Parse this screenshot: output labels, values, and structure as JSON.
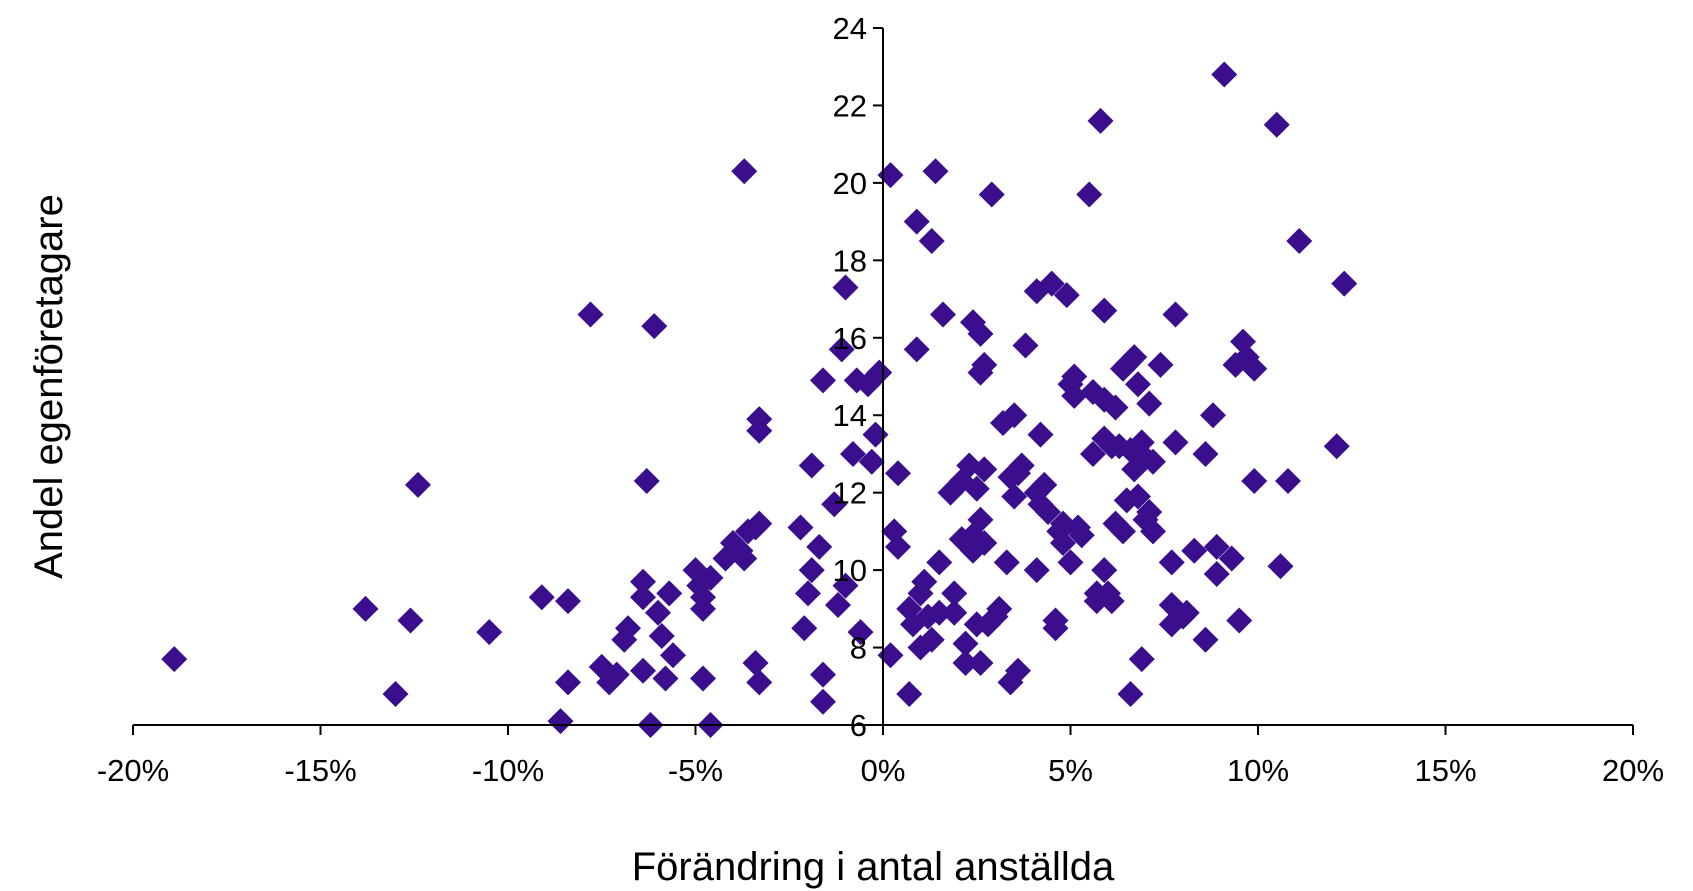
{
  "chart_data": {
    "type": "scatter",
    "title": "",
    "xlabel": "Förändring i antal anställda",
    "ylabel": "Andel egenföretagare",
    "xlim": [
      -0.2,
      0.2
    ],
    "ylim": [
      6,
      24
    ],
    "x_ticks": [
      -0.2,
      -0.15,
      -0.1,
      -0.05,
      0.0,
      0.05,
      0.1,
      0.15,
      0.2
    ],
    "x_tick_labels": [
      "-20%",
      "-15%",
      "-10%",
      "-5%",
      "0%",
      "5%",
      "10%",
      "15%",
      "20%"
    ],
    "y_ticks": [
      6,
      8,
      10,
      12,
      14,
      16,
      18,
      20,
      22,
      24
    ],
    "y_tick_labels": [
      "6",
      "8",
      "10",
      "12",
      "14",
      "16",
      "18",
      "20",
      "22",
      "24"
    ],
    "marker": "diamond",
    "marker_color": "#3a0e8c",
    "grid": false,
    "legend": "none",
    "points": [
      [
        -0.189,
        7.7
      ],
      [
        -0.138,
        9.0
      ],
      [
        -0.13,
        6.8
      ],
      [
        -0.126,
        8.7
      ],
      [
        -0.124,
        12.2
      ],
      [
        -0.105,
        8.4
      ],
      [
        -0.091,
        9.3
      ],
      [
        -0.084,
        9.2
      ],
      [
        -0.084,
        7.1
      ],
      [
        -0.086,
        6.1
      ],
      [
        -0.078,
        16.6
      ],
      [
        -0.075,
        7.5
      ],
      [
        -0.073,
        7.1
      ],
      [
        -0.071,
        7.3
      ],
      [
        -0.069,
        8.2
      ],
      [
        -0.068,
        8.5
      ],
      [
        -0.064,
        9.7
      ],
      [
        -0.064,
        9.3
      ],
      [
        -0.064,
        7.4
      ],
      [
        -0.063,
        12.3
      ],
      [
        -0.062,
        6.0
      ],
      [
        -0.061,
        16.3
      ],
      [
        -0.06,
        8.9
      ],
      [
        -0.059,
        8.3
      ],
      [
        -0.058,
        7.2
      ],
      [
        -0.057,
        9.4
      ],
      [
        -0.056,
        7.8
      ],
      [
        -0.05,
        10.0
      ],
      [
        -0.049,
        9.6
      ],
      [
        -0.048,
        9.3
      ],
      [
        -0.048,
        9.0
      ],
      [
        -0.048,
        7.2
      ],
      [
        -0.046,
        6.0
      ],
      [
        -0.046,
        9.8
      ],
      [
        -0.042,
        10.3
      ],
      [
        -0.04,
        10.7
      ],
      [
        -0.038,
        10.5
      ],
      [
        -0.036,
        11.0
      ],
      [
        -0.037,
        10.3
      ],
      [
        -0.037,
        20.3
      ],
      [
        -0.034,
        11.1
      ],
      [
        -0.034,
        7.6
      ],
      [
        -0.033,
        13.9
      ],
      [
        -0.033,
        13.6
      ],
      [
        -0.033,
        7.1
      ],
      [
        -0.033,
        11.2
      ],
      [
        -0.022,
        11.1
      ],
      [
        -0.021,
        8.5
      ],
      [
        -0.02,
        9.4
      ],
      [
        -0.019,
        12.7
      ],
      [
        -0.019,
        10.0
      ],
      [
        -0.017,
        10.6
      ],
      [
        -0.016,
        14.9
      ],
      [
        -0.016,
        7.3
      ],
      [
        -0.016,
        6.6
      ],
      [
        -0.013,
        11.7
      ],
      [
        -0.012,
        9.1
      ],
      [
        -0.011,
        15.7
      ],
      [
        -0.01,
        17.3
      ],
      [
        -0.01,
        9.6
      ],
      [
        -0.008,
        13.0
      ],
      [
        -0.007,
        14.9
      ],
      [
        -0.006,
        8.4
      ],
      [
        -0.004,
        14.8
      ],
      [
        -0.003,
        12.8
      ],
      [
        -0.002,
        13.5
      ],
      [
        -0.001,
        15.1
      ],
      [
        0.002,
        20.2
      ],
      [
        0.002,
        7.8
      ],
      [
        0.003,
        11.0
      ],
      [
        0.004,
        10.6
      ],
      [
        0.004,
        12.5
      ],
      [
        0.007,
        6.8
      ],
      [
        0.007,
        9.0
      ],
      [
        0.008,
        8.6
      ],
      [
        0.009,
        19.0
      ],
      [
        0.009,
        15.7
      ],
      [
        0.01,
        9.4
      ],
      [
        0.01,
        8.0
      ],
      [
        0.011,
        9.7
      ],
      [
        0.012,
        8.8
      ],
      [
        0.013,
        8.2
      ],
      [
        0.013,
        18.5
      ],
      [
        0.014,
        20.3
      ],
      [
        0.015,
        8.9
      ],
      [
        0.015,
        10.2
      ],
      [
        0.016,
        16.6
      ],
      [
        0.018,
        12.0
      ],
      [
        0.019,
        9.4
      ],
      [
        0.019,
        8.9
      ],
      [
        0.021,
        12.3
      ],
      [
        0.021,
        10.8
      ],
      [
        0.022,
        7.6
      ],
      [
        0.022,
        8.1
      ],
      [
        0.023,
        12.7
      ],
      [
        0.024,
        16.4
      ],
      [
        0.024,
        10.9
      ],
      [
        0.024,
        10.5
      ],
      [
        0.025,
        12.1
      ],
      [
        0.025,
        8.6
      ],
      [
        0.026,
        16.1
      ],
      [
        0.026,
        7.6
      ],
      [
        0.026,
        11.3
      ],
      [
        0.026,
        15.1
      ],
      [
        0.027,
        15.3
      ],
      [
        0.027,
        10.7
      ],
      [
        0.027,
        12.6
      ],
      [
        0.028,
        8.6
      ],
      [
        0.029,
        19.7
      ],
      [
        0.03,
        8.8
      ],
      [
        0.031,
        9.0
      ],
      [
        0.032,
        13.8
      ],
      [
        0.033,
        10.2
      ],
      [
        0.034,
        12.4
      ],
      [
        0.034,
        7.1
      ],
      [
        0.035,
        14.0
      ],
      [
        0.035,
        11.9
      ],
      [
        0.036,
        12.5
      ],
      [
        0.036,
        7.4
      ],
      [
        0.037,
        12.7
      ],
      [
        0.038,
        15.8
      ],
      [
        0.041,
        12.0
      ],
      [
        0.041,
        10.0
      ],
      [
        0.041,
        17.2
      ],
      [
        0.042,
        13.5
      ],
      [
        0.042,
        11.7
      ],
      [
        0.043,
        12.2
      ],
      [
        0.044,
        11.5
      ],
      [
        0.045,
        17.4
      ],
      [
        0.046,
        8.7
      ],
      [
        0.046,
        8.5
      ],
      [
        0.047,
        11.0
      ],
      [
        0.048,
        11.2
      ],
      [
        0.048,
        10.7
      ],
      [
        0.049,
        17.1
      ],
      [
        0.05,
        10.2
      ],
      [
        0.05,
        14.8
      ],
      [
        0.051,
        14.5
      ],
      [
        0.051,
        15.0
      ],
      [
        0.052,
        11.1
      ],
      [
        0.053,
        10.9
      ],
      [
        0.055,
        19.7
      ],
      [
        0.056,
        14.6
      ],
      [
        0.056,
        13.0
      ],
      [
        0.057,
        9.4
      ],
      [
        0.057,
        9.2
      ],
      [
        0.058,
        21.6
      ],
      [
        0.059,
        16.7
      ],
      [
        0.059,
        14.4
      ],
      [
        0.059,
        13.4
      ],
      [
        0.059,
        10.0
      ],
      [
        0.06,
        9.4
      ],
      [
        0.061,
        13.2
      ],
      [
        0.061,
        9.2
      ],
      [
        0.062,
        14.2
      ],
      [
        0.062,
        11.2
      ],
      [
        0.063,
        13.2
      ],
      [
        0.064,
        11.0
      ],
      [
        0.064,
        15.2
      ],
      [
        0.065,
        15.3
      ],
      [
        0.065,
        11.8
      ],
      [
        0.066,
        13.1
      ],
      [
        0.066,
        6.8
      ],
      [
        0.067,
        15.5
      ],
      [
        0.067,
        12.6
      ],
      [
        0.068,
        11.9
      ],
      [
        0.068,
        14.8
      ],
      [
        0.069,
        7.7
      ],
      [
        0.069,
        13.3
      ],
      [
        0.07,
        11.3
      ],
      [
        0.07,
        12.9
      ],
      [
        0.071,
        11.5
      ],
      [
        0.071,
        14.3
      ],
      [
        0.072,
        12.8
      ],
      [
        0.072,
        11.0
      ],
      [
        0.074,
        15.3
      ],
      [
        0.077,
        10.2
      ],
      [
        0.077,
        9.1
      ],
      [
        0.077,
        8.6
      ],
      [
        0.078,
        16.6
      ],
      [
        0.078,
        13.3
      ],
      [
        0.08,
        8.8
      ],
      [
        0.081,
        8.9
      ],
      [
        0.083,
        10.5
      ],
      [
        0.086,
        13.0
      ],
      [
        0.086,
        8.2
      ],
      [
        0.088,
        14.0
      ],
      [
        0.089,
        9.9
      ],
      [
        0.089,
        10.6
      ],
      [
        0.091,
        22.8
      ],
      [
        0.093,
        10.3
      ],
      [
        0.094,
        15.3
      ],
      [
        0.095,
        8.7
      ],
      [
        0.096,
        15.9
      ],
      [
        0.097,
        15.5
      ],
      [
        0.099,
        15.2
      ],
      [
        0.099,
        12.3
      ],
      [
        0.105,
        21.5
      ],
      [
        0.106,
        10.1
      ],
      [
        0.108,
        12.3
      ],
      [
        0.111,
        18.5
      ],
      [
        0.121,
        13.2
      ],
      [
        0.123,
        17.4
      ]
    ]
  }
}
